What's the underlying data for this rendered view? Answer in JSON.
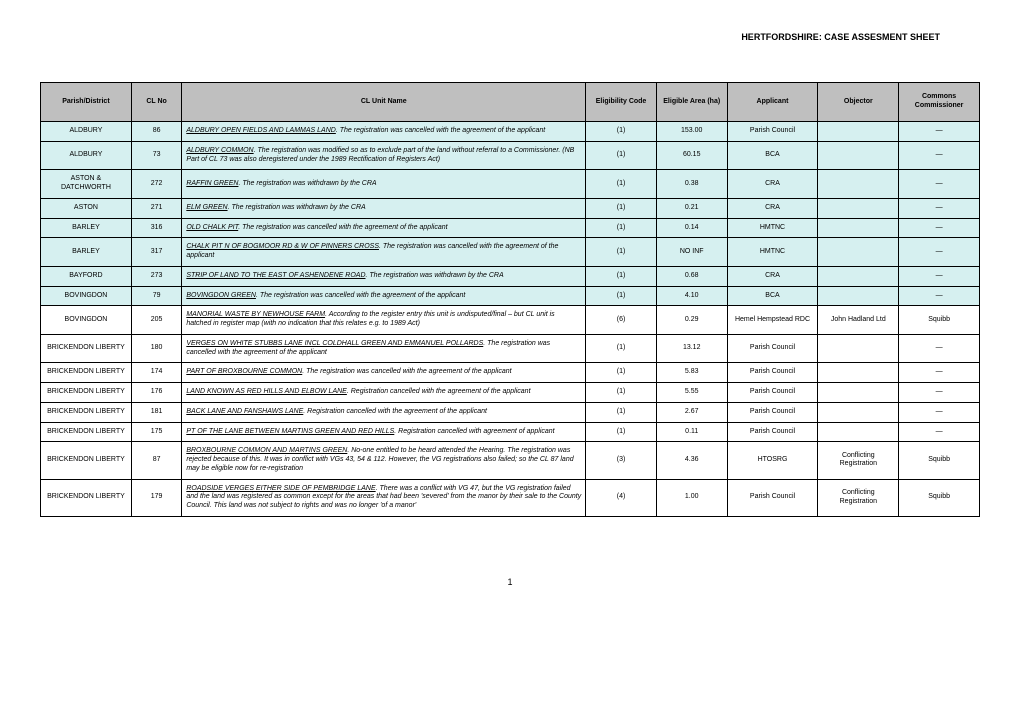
{
  "header": {
    "title": "HERTFORDSHIRE: CASE ASSESMENT SHEET"
  },
  "columns": [
    "Parish/District",
    "CL No",
    "CL Unit Name",
    "Eligibility Code",
    "Eligible Area (ha)",
    "Applicant",
    "Objector",
    "Commons Commissioner"
  ],
  "rows": [
    {
      "highlight": true,
      "parish": "ALDBURY",
      "clno": "86",
      "uname": "ALDBURY OPEN FIELDS AND LAMMAS LAND",
      "desc": ". The registration was cancelled with the agreement of the applicant",
      "code": "(1)",
      "area": "153.00",
      "applicant": "Parish Council",
      "objector": "",
      "comm": "—"
    },
    {
      "highlight": true,
      "parish": "ALDBURY",
      "clno": "73",
      "uname": "ALDBURY COMMON",
      "desc": ". The registration was modified so as to exclude part of the land without referral to a Commissioner. (NB Part of CL 73 was also deregistered under the 1989 Rectification of Registers Act)",
      "code": "(1)",
      "area": "60.15",
      "applicant": "BCA",
      "objector": "",
      "comm": "—"
    },
    {
      "highlight": true,
      "parish": "ASTON & DATCHWORTH",
      "clno": "272",
      "uname": "RAFFIN GREEN",
      "desc": ". The registration was withdrawn by the CRA",
      "code": "(1)",
      "area": "0.38",
      "applicant": "CRA",
      "objector": "",
      "comm": "—"
    },
    {
      "highlight": true,
      "parish": "ASTON",
      "clno": "271",
      "uname": "ELM GREEN",
      "desc": ". The registration was withdrawn by the CRA",
      "code": "(1)",
      "area": "0.21",
      "applicant": "CRA",
      "objector": "",
      "comm": "—"
    },
    {
      "highlight": true,
      "parish": "BARLEY",
      "clno": "316",
      "uname": "OLD CHALK PIT",
      "desc": ". The registration was cancelled with the agreement of the applicant",
      "code": "(1)",
      "area": "0.14",
      "applicant": "HMTNC",
      "objector": "",
      "comm": "—"
    },
    {
      "highlight": true,
      "parish": "BARLEY",
      "clno": "317",
      "uname": "CHALK PIT N OF BOGMOOR RD & W OF PINNERS CROSS",
      "desc": ". The registration was cancelled with the agreement of the applicant",
      "code": "(1)",
      "area": "NO INF",
      "applicant": "HMTNC",
      "objector": "",
      "comm": "—"
    },
    {
      "highlight": true,
      "parish": "BAYFORD",
      "clno": "273",
      "uname": "STRIP OF LAND TO THE EAST OF ASHENDENE ROAD",
      "desc": ". The registration was withdrawn by the CRA",
      "code": "(1)",
      "area": "0.68",
      "applicant": "CRA",
      "objector": "",
      "comm": "—"
    },
    {
      "highlight": true,
      "parish": "BOVINGDON",
      "clno": "79",
      "uname": "BOVINGDON GREEN",
      "desc": ". The registration was cancelled with the agreement of the applicant",
      "code": "(1)",
      "area": "4.10",
      "applicant": "BCA",
      "objector": "",
      "comm": "—"
    },
    {
      "highlight": false,
      "parish": "BOVINGDON",
      "clno": "205",
      "uname": "MANORIAL WASTE BY NEWHOUSE FARM",
      "desc": ". According to the register entry this unit is undisputed/final – but CL unit is hatched in register map (with no indication that this relates e.g. to 1989 Act)",
      "code": "(6)",
      "area": "0.29",
      "applicant": "Hemel Hempstead RDC",
      "objector": "John Hadland Ltd",
      "comm": "Squibb"
    },
    {
      "highlight": false,
      "parish": "BRICKENDON LIBERTY",
      "clno": "180",
      "uname": "VERGES ON WHITE STUBBS LANE INCL COLDHALL GREEN AND EMMANUEL POLLARDS",
      "desc": ". The registration was cancelled with the agreement of the applicant",
      "code": "(1)",
      "area": "13.12",
      "applicant": "Parish Council",
      "objector": "",
      "comm": "—"
    },
    {
      "highlight": false,
      "parish": "BRICKENDON LIBERTY",
      "clno": "174",
      "uname": "PART OF BROXBOURNE COMMON",
      "desc": ". The registration was cancelled with the agreement of the applicant",
      "code": "(1)",
      "area": "5.83",
      "applicant": "Parish Council",
      "objector": "",
      "comm": "—"
    },
    {
      "highlight": false,
      "parish": "BRICKENDON LIBERTY",
      "clno": "176",
      "uname": "LAND KNOWN AS RED HILLS AND ELBOW LANE",
      "desc": ". Registration cancelled with the agreement of the applicant",
      "code": "(1)",
      "area": "5.55",
      "applicant": "Parish Council",
      "objector": "",
      "comm": "—"
    },
    {
      "highlight": false,
      "parish": "BRICKENDON LIBERTY",
      "clno": "181",
      "uname": "BACK LANE AND FANSHAWS LANE",
      "desc": ". Registration cancelled with the agreement of the applicant",
      "code": "(1)",
      "area": "2.67",
      "applicant": "Parish Council",
      "objector": "",
      "comm": "—"
    },
    {
      "highlight": false,
      "parish": "BRICKENDON LIBERTY",
      "clno": "175",
      "uname": "PT OF THE LANE BETWEEN MARTINS GREEN AND RED HILLS",
      "desc": ". Registration cancelled with agreement of applicant",
      "code": "(1)",
      "area": "0.11",
      "applicant": "Parish Council",
      "objector": "",
      "comm": "—"
    },
    {
      "highlight": false,
      "parish": "BRICKENDON LIBERTY",
      "clno": "87",
      "uname": "BROXBOURNE COMMON AND MARTINS GREEN",
      "desc": ". No-one entitled to be heard attended the Hearing. The registration was rejected because of this. It was in conflict with VGs 43, 54 & 112. However, the VG registrations also failed; so the CL 87 land may be eligible now for re-registration",
      "code": "(3)",
      "area": "4.36",
      "applicant": "HTOSRG",
      "objector": "Conflicting Registration",
      "comm": "Squibb"
    },
    {
      "highlight": false,
      "parish": "BRICKENDON LIBERTY",
      "clno": "179",
      "uname": "ROADSIDE VERGES EITHER SIDE OF PEMBRIDGE LANE",
      "desc": ". There was a conflict with VG 47, but the VG registration failed and the land was registered as common except for the areas that had been 'severed' from the manor by their sale to the County Council. This land was not subject to rights and was no longer 'of a manor'",
      "code": "(4)",
      "area": "1.00",
      "applicant": "Parish Council",
      "objector": "Conflicting Registration",
      "comm": "Squibb"
    }
  ],
  "footer": {
    "page": "1"
  }
}
